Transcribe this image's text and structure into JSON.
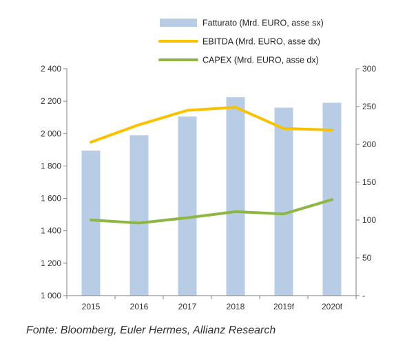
{
  "chart_data": {
    "type": "bar",
    "categories": [
      "2015",
      "2016",
      "2017",
      "2018",
      "2019f",
      "2020f"
    ],
    "series": [
      {
        "name": "Fatturato  (Mrd. EURO, asse sx)",
        "type": "bar",
        "axis": "left",
        "values": [
          1895,
          1990,
          2105,
          2225,
          2160,
          2190
        ],
        "color": "#b8cde5"
      },
      {
        "name": "EBITDA (Mrd. EURO, asse dx)",
        "type": "line",
        "axis": "right",
        "values": [
          203,
          226,
          245,
          249,
          221,
          219
        ],
        "color": "#f7c300"
      },
      {
        "name": "CAPEX (Mrd. EURO, asse dx)",
        "type": "line",
        "axis": "right",
        "values": [
          100,
          96,
          103,
          111,
          108,
          127
        ],
        "color": "#8db645"
      }
    ],
    "left_axis": {
      "ylim": [
        1000,
        2400
      ],
      "ticks": [
        1000,
        1200,
        1400,
        1600,
        1800,
        2000,
        2200,
        2400
      ],
      "tick_labels": [
        "1 000",
        "1 200",
        "1 400",
        "1 600",
        "1 800",
        "2 000",
        "2 200",
        "2 400"
      ]
    },
    "right_axis": {
      "ylim": [
        0,
        300
      ],
      "ticks": [
        0,
        50,
        100,
        150,
        200,
        250,
        300
      ],
      "tick_labels": [
        "-",
        "50",
        "100",
        "150",
        "200",
        "250",
        "300"
      ]
    },
    "legend_position": "top",
    "grid": false
  },
  "source_note": "Fonte: Bloomberg, Euler Hermes, Allianz Research"
}
